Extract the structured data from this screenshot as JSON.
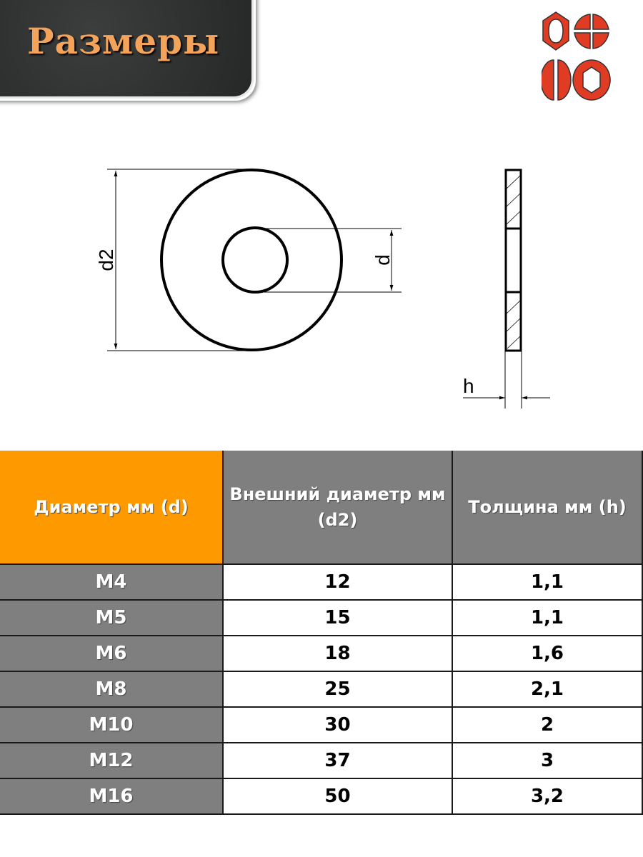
{
  "banner": {
    "title": "Размеры"
  },
  "logo": {
    "icon": "fastener-heads-logo-icon",
    "color": "#e03c24"
  },
  "drawing": {
    "labels": {
      "outer_diameter": "d2",
      "inner_diameter": "d",
      "thickness": "h"
    }
  },
  "table": {
    "headers": [
      "Диаметр мм (d)",
      "Внешний диаметр мм (d2)",
      "Толщина мм (h)"
    ],
    "header_color": "#ff9900",
    "rows": [
      [
        "M4",
        "12",
        "1,1"
      ],
      [
        "M5",
        "15",
        "1,1"
      ],
      [
        "M6",
        "18",
        "1,6"
      ],
      [
        "M8",
        "25",
        "2,1"
      ],
      [
        "M10",
        "30",
        "2"
      ],
      [
        "M12",
        "37",
        "3"
      ],
      [
        "M16",
        "50",
        "3,2"
      ]
    ]
  }
}
